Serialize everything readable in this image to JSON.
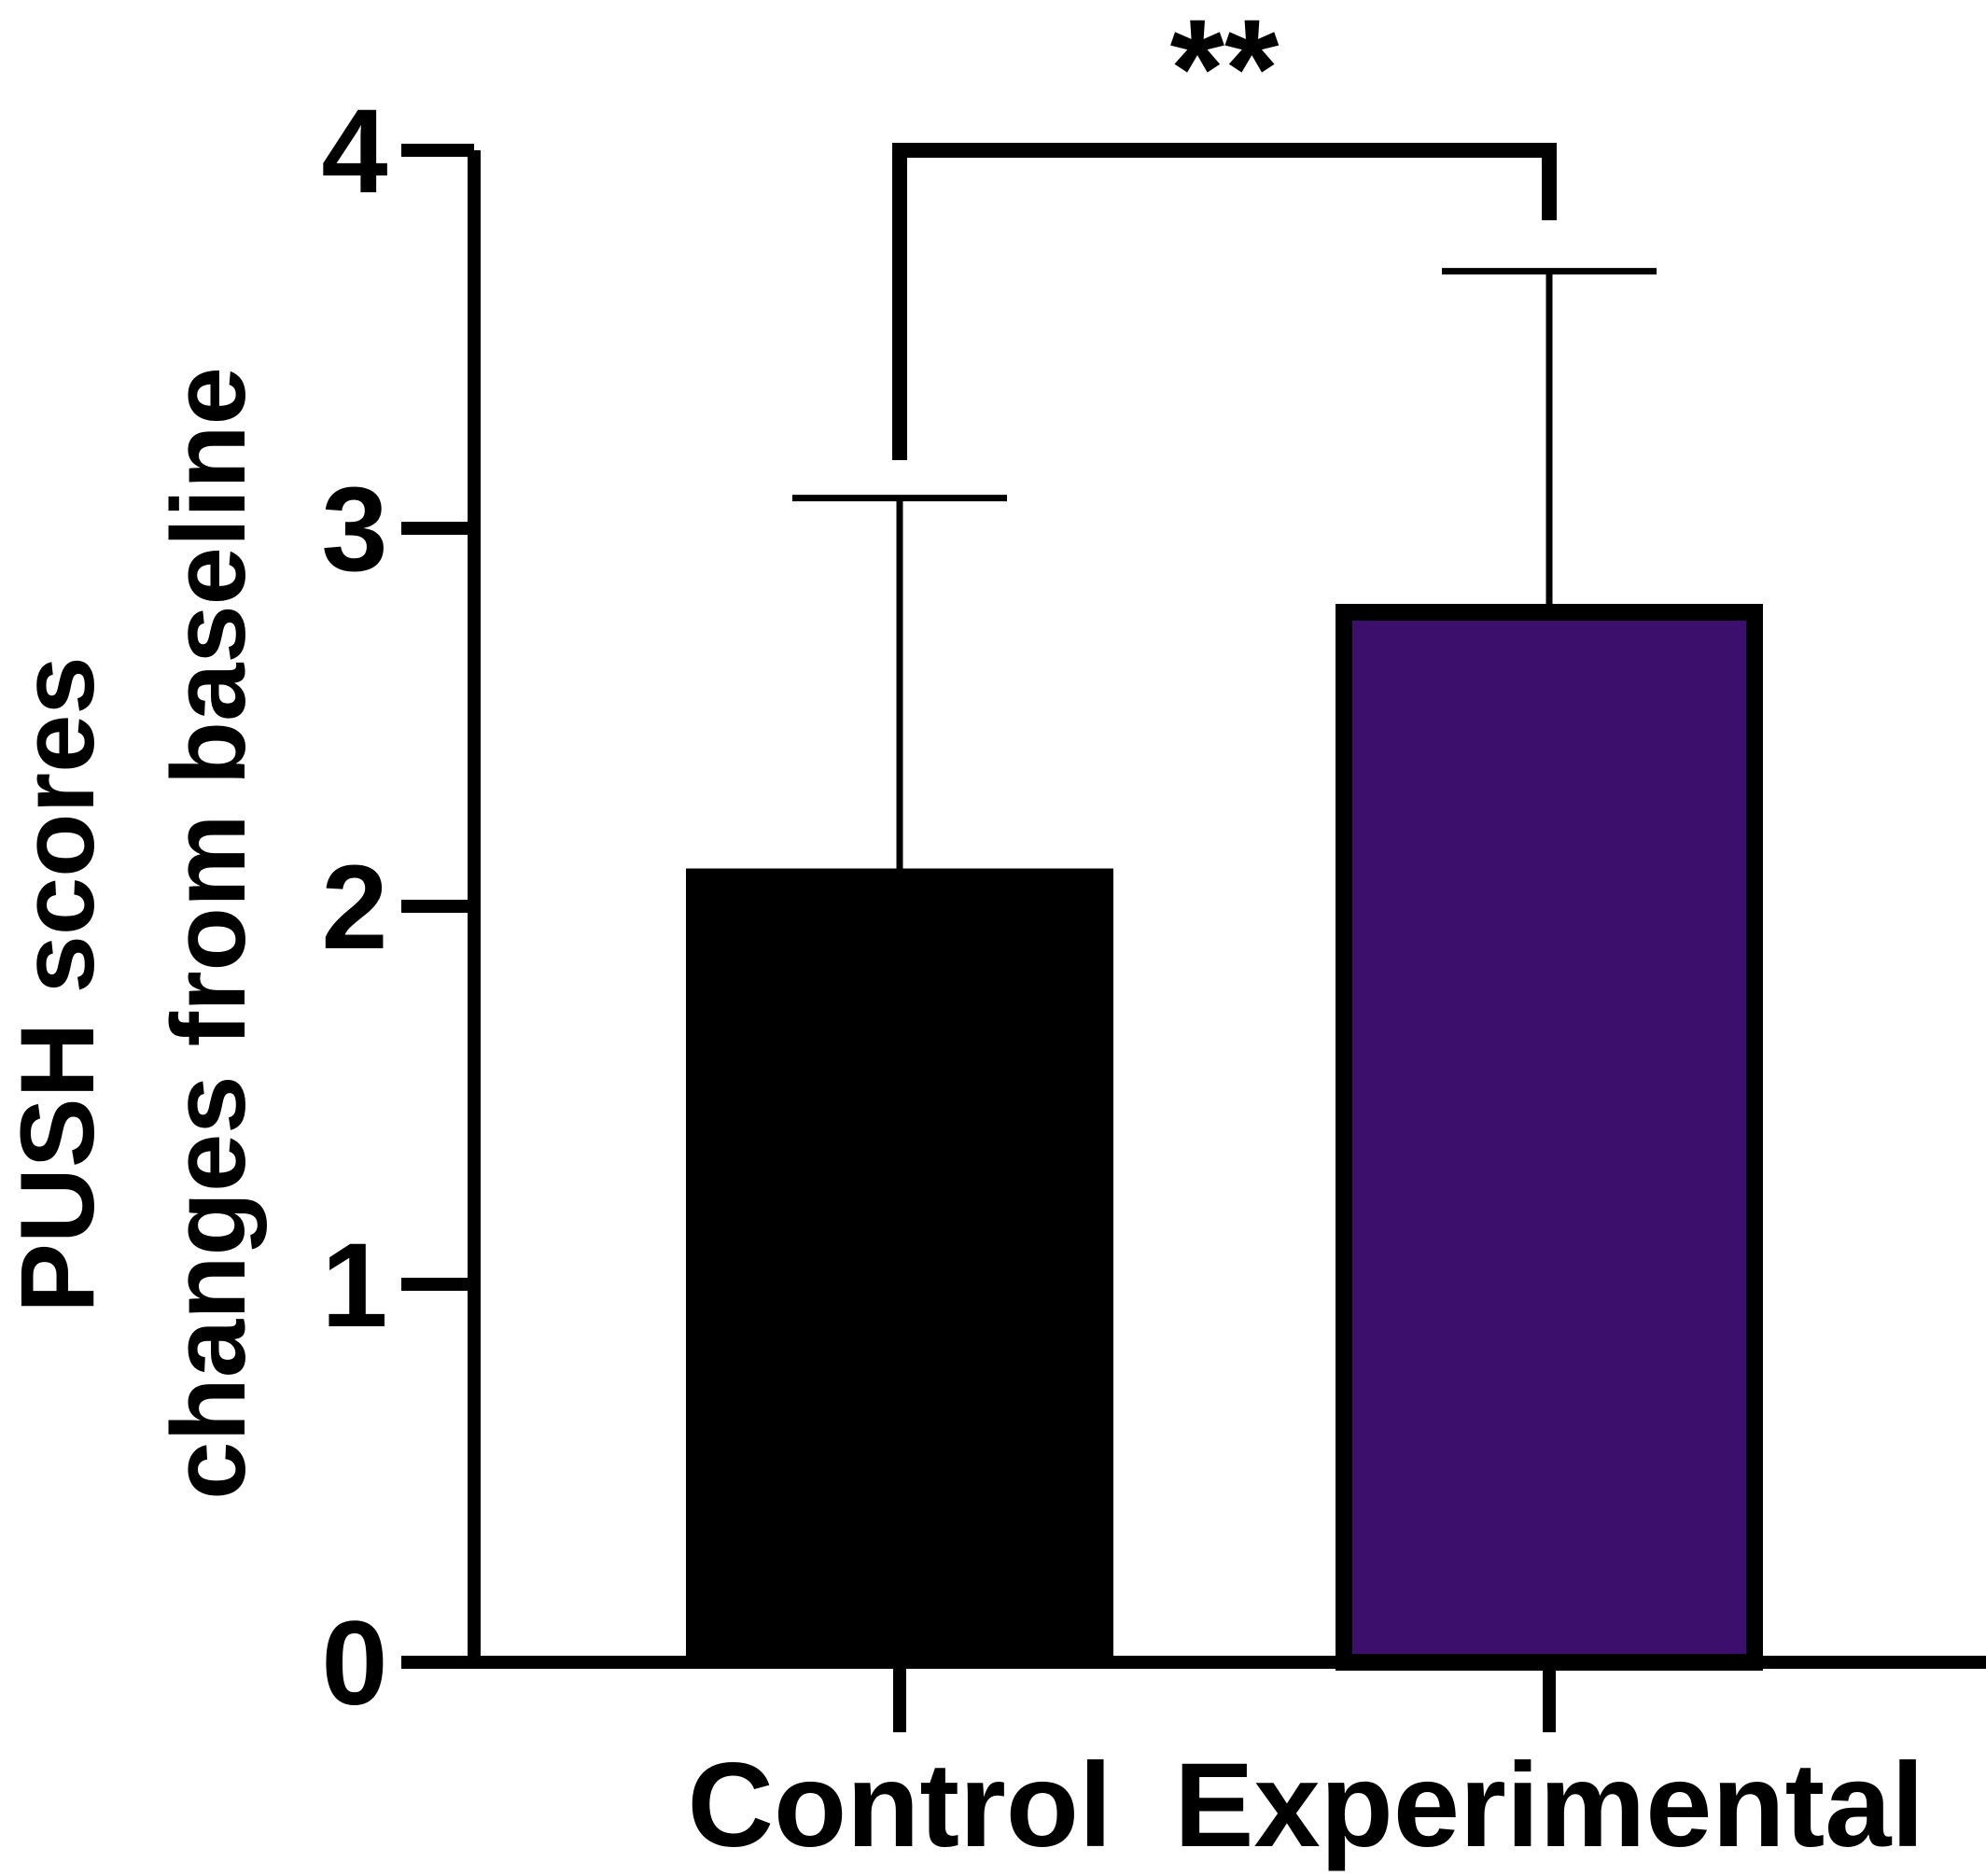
{
  "chart_data": {
    "type": "bar",
    "categories": [
      "Control",
      "Experimental"
    ],
    "values": [
      2.1,
      2.8
    ],
    "error_upper": [
      3.08,
      3.68
    ],
    "ylim": [
      0,
      4
    ],
    "yticks": [
      "0",
      "1",
      "2",
      "3",
      "4"
    ],
    "ylabel_line1": "PUSH scores",
    "ylabel_line2": "changes from baseline",
    "xlabel": "",
    "significance": {
      "between": [
        "Control",
        "Experimental"
      ],
      "label": "**"
    },
    "bar_colors": [
      "#000000",
      "#3b0f6b"
    ],
    "grid": false
  }
}
